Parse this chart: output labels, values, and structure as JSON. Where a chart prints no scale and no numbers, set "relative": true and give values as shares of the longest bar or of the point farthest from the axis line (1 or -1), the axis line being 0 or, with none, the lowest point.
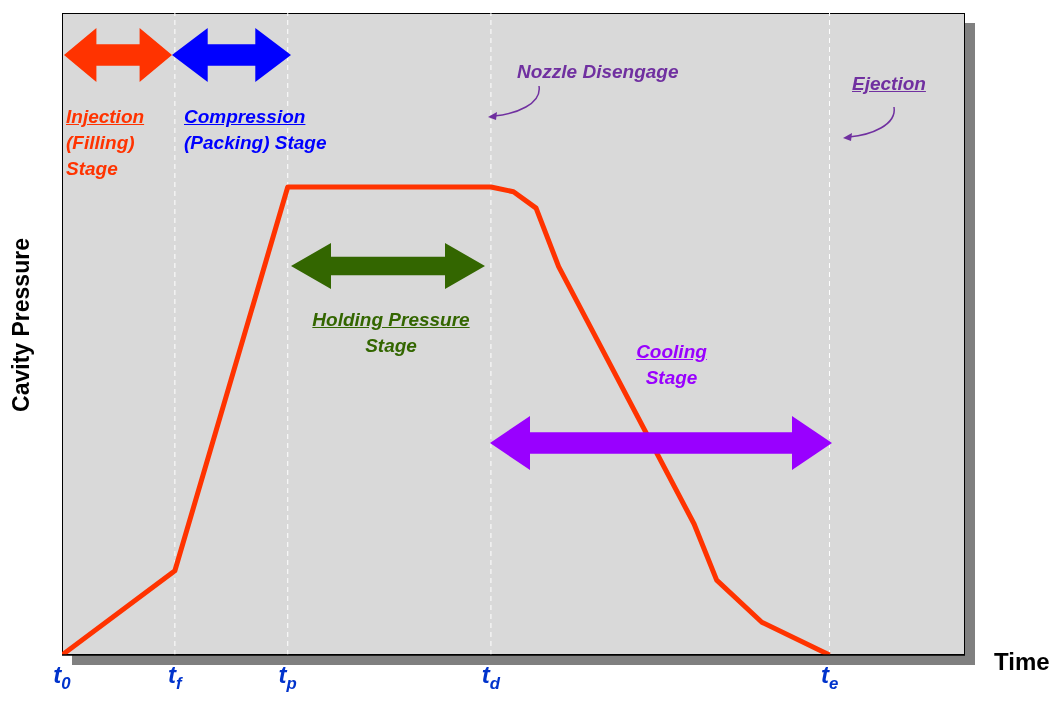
{
  "chart_data": {
    "type": "line",
    "relative": true,
    "xlabel": "Time",
    "ylabel": "Cavity Pressure",
    "categories": [
      "t$_{0}$",
      null,
      null,
      null,
      null,
      "t$_{f}$",
      null,
      null,
      null,
      null,
      "t$_{p}$",
      null,
      null,
      null,
      null,
      null,
      null,
      null,
      null,
      "t$_{d}$",
      null,
      null,
      null,
      null,
      null,
      null,
      null,
      null,
      null,
      null,
      null,
      null,
      null,
      null,
      "t$_{e}$",
      null,
      null,
      null,
      null,
      null,
      null
    ],
    "series": [
      {
        "color": "#ff3300",
        "values": [
          0,
          null,
          null,
          null,
          null,
          0.18,
          null,
          null,
          null,
          null,
          1,
          null,
          null,
          null,
          null,
          null,
          null,
          null,
          null,
          1,
          0.99,
          0.955,
          0.83,
          null,
          null,
          null,
          null,
          null,
          0.28,
          0.16,
          null,
          0.07,
          null,
          null,
          0,
          null,
          null,
          null,
          null,
          null,
          null
        ]
      }
    ],
    "ref_lines": [
      {
        "axis": "x",
        "value": "t$_{f}$",
        "color": "#ffffff",
        "line_style": "dashed"
      },
      {
        "axis": "x",
        "value": "t$_{p}$",
        "color": "#ffffff",
        "line_style": "dashed"
      },
      {
        "axis": "x",
        "value": "t$_{d}$",
        "color": "#ffffff",
        "line_style": "dashed"
      },
      {
        "axis": "x",
        "value": "t$_{e}$",
        "color": "#ffffff",
        "line_style": "dashed"
      }
    ],
    "line_style": "solid",
    "annotations": [
      "Injection (Filling) Stage",
      "Compression (Packing) Stage",
      "Holding Pressure Stage",
      "Cooling Stage",
      "Nozzle Disengage",
      "Ejection"
    ]
  }
}
